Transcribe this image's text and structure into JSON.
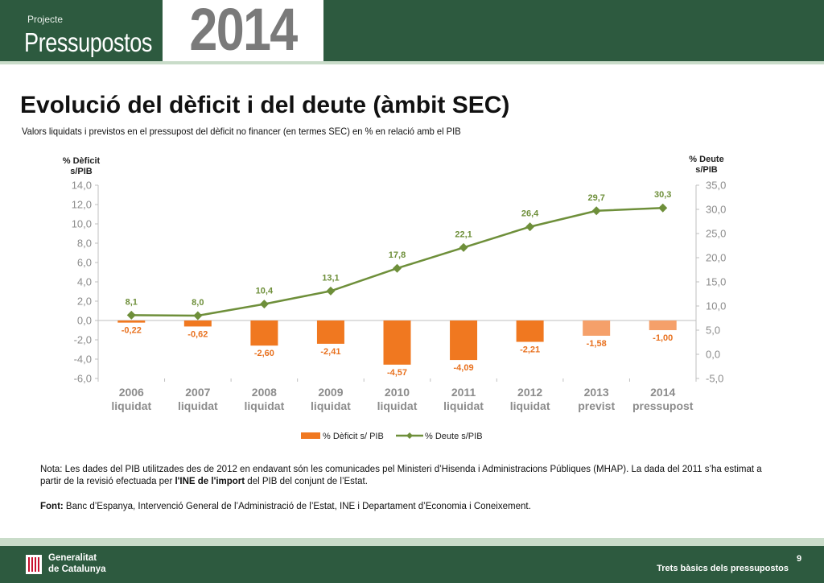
{
  "header": {
    "project_label": "Projecte",
    "title": "Pressupostos",
    "year": "2014"
  },
  "title": "Evolució del dèficit i del deute (àmbit SEC)",
  "subtitle": "Valors liquidats i previstos en el pressupost del dèficit no financer (en termes SEC) en % en relació amb el PIB",
  "chart_data": {
    "type": "bar+line",
    "categories": [
      [
        "2006",
        "liquidat"
      ],
      [
        "2007",
        "liquidat"
      ],
      [
        "2008",
        "liquidat"
      ],
      [
        "2009",
        "liquidat"
      ],
      [
        "2010",
        "liquidat"
      ],
      [
        "2011",
        "liquidat"
      ],
      [
        "2012",
        "liquidat"
      ],
      [
        "2013",
        "previst"
      ],
      [
        "2014",
        "pressupost"
      ]
    ],
    "left_axis": {
      "label_lines": [
        "% Dèficit",
        "s/PIB"
      ],
      "ylim": [
        -6,
        14
      ],
      "ticks": [
        "14,0",
        "12,0",
        "10,0",
        "8,0",
        "6,0",
        "4,0",
        "2,0",
        "0,0",
        "-2,0",
        "-4,0",
        "-6,0"
      ],
      "tick_values": [
        14,
        12,
        10,
        8,
        6,
        4,
        2,
        0,
        -2,
        -4,
        -6
      ]
    },
    "right_axis": {
      "label_lines": [
        "% Deute",
        "s/PIB"
      ],
      "ylim": [
        -5,
        35
      ],
      "ticks": [
        "35,0",
        "30,0",
        "25,0",
        "20,0",
        "15,0",
        "10,0",
        "5,0",
        "0,0",
        "-5,0"
      ],
      "tick_values": [
        35,
        30,
        25,
        20,
        15,
        10,
        5,
        0,
        -5
      ]
    },
    "series": [
      {
        "name": "% Dèficit s/ PIB",
        "kind": "bar",
        "axis": "left",
        "values": [
          -0.22,
          -0.62,
          -2.6,
          -2.41,
          -4.57,
          -4.09,
          -2.21,
          -1.58,
          -1.0
        ],
        "labels": [
          "-0,22",
          "-0,62",
          "-2,60",
          "-2,41",
          "-4,57",
          "-4,09",
          "-2,21",
          "-1,58",
          "-1,00"
        ],
        "colors": [
          "#f07820",
          "#f07820",
          "#f07820",
          "#f07820",
          "#f07820",
          "#f07820",
          "#f07820",
          "#f5a06a",
          "#f5a06a"
        ]
      },
      {
        "name": "% Deute s/PIB",
        "kind": "line",
        "axis": "right",
        "values": [
          8.1,
          8.0,
          10.4,
          13.1,
          17.8,
          22.1,
          26.4,
          29.7,
          30.3
        ],
        "labels": [
          "8,1",
          "8,0",
          "10,4",
          "13,1",
          "17,8",
          "22,1",
          "26,4",
          "29,7",
          "30,3"
        ],
        "color": "#6e8f3a"
      }
    ],
    "grid": false,
    "legend_position": "bottom"
  },
  "note": {
    "prefix": "Nota: Les dades del PIB  utilitzades des de 2012 en endavant són les comunicades pel Ministeri d’Hisenda i Administracions Públiques (MHAP). La dada del 2011 s’ha estimat a partir de la revisió efectuada per ",
    "bold": "l'INE de l'import",
    "suffix": " del PIB del conjunt de l’Estat."
  },
  "source": {
    "label": "Font:",
    "text": " Banc d’Espanya, Intervenció General de l’Administració de l’Estat, INE i Departament d’Economia i Coneixement."
  },
  "footer": {
    "org_line1": "Generalitat",
    "org_line2": "de Catalunya",
    "page": "9",
    "text": "Trets bàsics dels pressupostos"
  }
}
